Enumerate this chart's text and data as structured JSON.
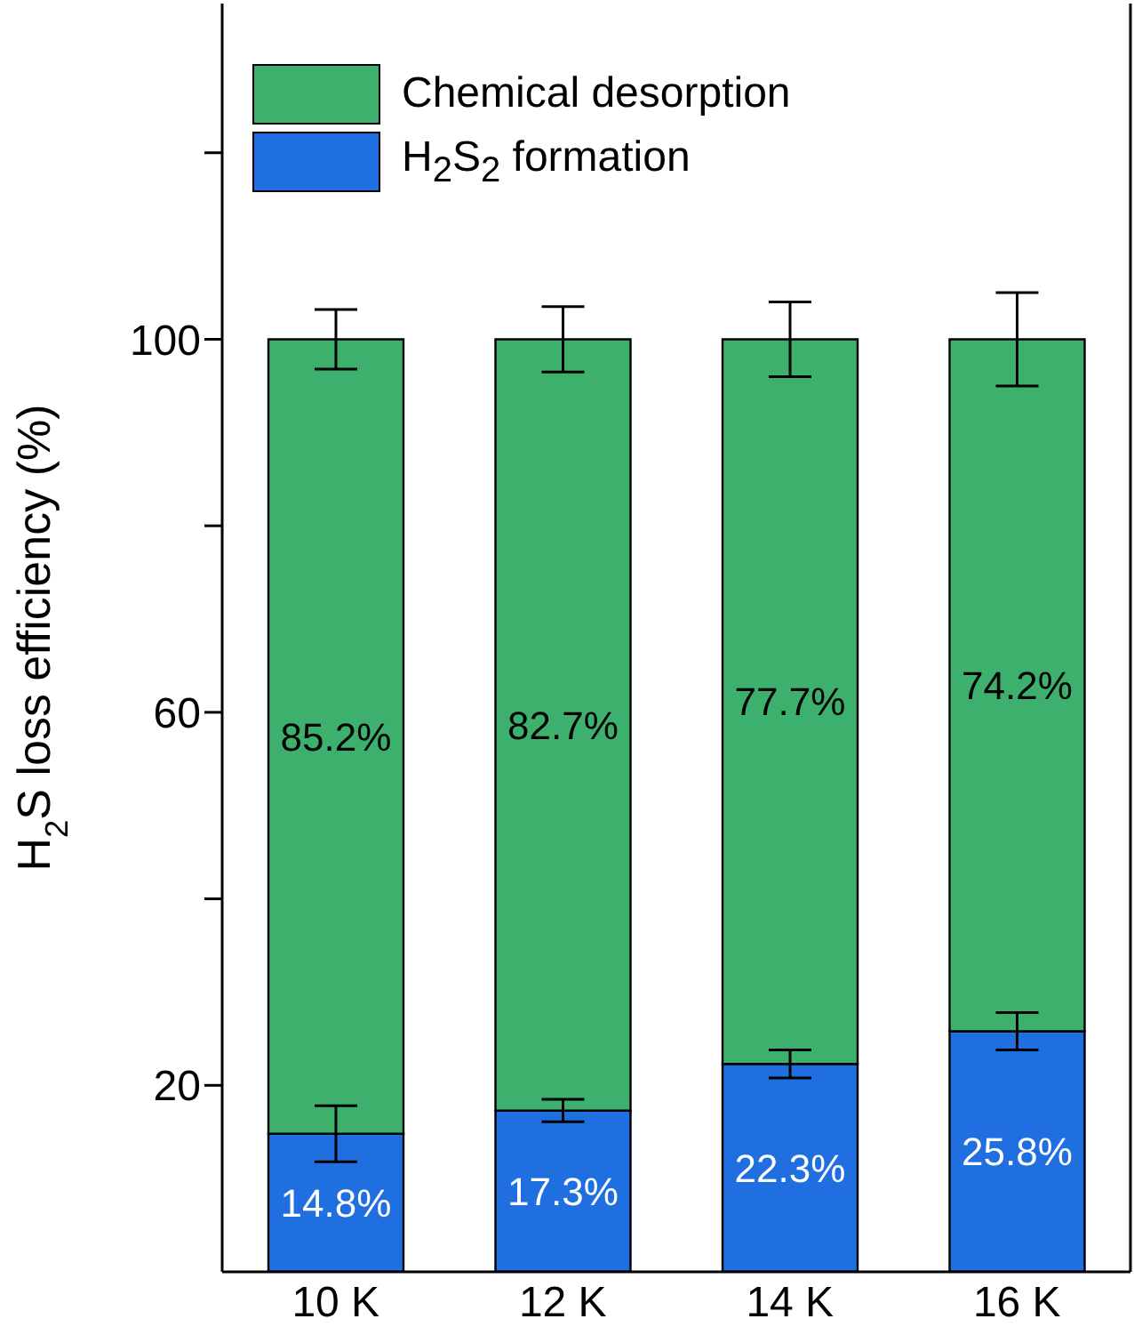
{
  "chart_data": {
    "type": "bar",
    "stacked": true,
    "ylabel": "H$_{2}$S loss efficiency (%)",
    "categories": [
      "10 K",
      "12 K",
      "14 K",
      "16 K"
    ],
    "series": [
      {
        "name": "H$_{2}$S$_{2}$ formation",
        "color": "#1f6fe0",
        "values": [
          14.8,
          17.3,
          22.3,
          25.8
        ],
        "errors": [
          3,
          1.2,
          1.5,
          2
        ],
        "value_labels": [
          "14.8%",
          "17.3%",
          "22.3%",
          "25.8%"
        ]
      },
      {
        "name": "Chemical desorption",
        "color": "#3cb06c",
        "values": [
          85.2,
          82.7,
          77.7,
          74.2
        ],
        "errors": [
          3.2,
          3.5,
          4,
          5
        ],
        "value_labels": [
          "85.2%",
          "82.7%",
          "77.7%",
          "74.2%"
        ]
      }
    ],
    "ylim": [
      0,
      136
    ],
    "yticks": [
      {
        "value": 20,
        "label": "20"
      },
      {
        "value": 40,
        "label": null
      },
      {
        "value": 60,
        "label": "60"
      },
      {
        "value": 80,
        "label": null
      },
      {
        "value": 100,
        "label": "100"
      },
      {
        "value": 120,
        "label": null
      }
    ],
    "grid": false,
    "legend": "top left"
  }
}
